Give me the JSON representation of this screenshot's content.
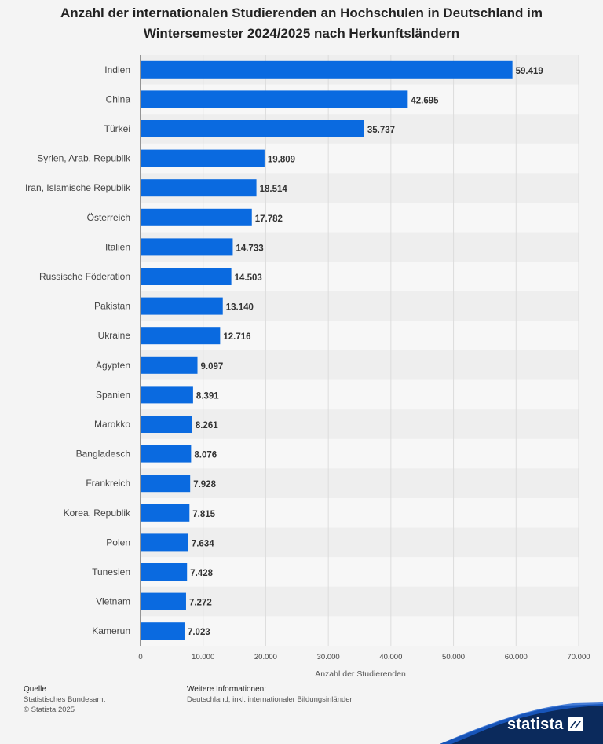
{
  "title": {
    "line1": "Anzahl der internationalen Studierenden an Hochschulen in Deutschland im",
    "line2": "Wintersemester 2024/2025 nach Herkunftsländern"
  },
  "chart_data": {
    "type": "bar",
    "orientation": "horizontal",
    "categories": [
      "Indien",
      "China",
      "Türkei",
      "Syrien, Arab. Republik",
      "Iran, Islamische Republik",
      "Österreich",
      "Italien",
      "Russische Föderation",
      "Pakistan",
      "Ukraine",
      "Ägypten",
      "Spanien",
      "Marokko",
      "Bangladesch",
      "Frankreich",
      "Korea, Republik",
      "Polen",
      "Tunesien",
      "Vietnam",
      "Kamerun"
    ],
    "values": [
      59419,
      42695,
      35737,
      19809,
      18514,
      17782,
      14733,
      14503,
      13140,
      12716,
      9097,
      8391,
      8261,
      8076,
      7928,
      7815,
      7634,
      7428,
      7272,
      7023
    ],
    "value_labels": [
      "59.419",
      "42.695",
      "35.737",
      "19.809",
      "18.514",
      "17.782",
      "14.733",
      "14.503",
      "13.140",
      "12.716",
      "9.097",
      "8.391",
      "8.261",
      "8.076",
      "7.928",
      "7.815",
      "7.634",
      "7.428",
      "7.272",
      "7.023"
    ],
    "xlim": [
      0,
      70000
    ],
    "xticks": [
      0,
      10000,
      20000,
      30000,
      40000,
      50000,
      60000,
      70000
    ],
    "xtick_labels": [
      "0",
      "10.000",
      "20.000",
      "30.000",
      "40.000",
      "50.000",
      "60.000",
      "70.000"
    ],
    "xlabel": "Anzahl der Studierenden",
    "ylabel": "",
    "grid": true,
    "bar_color": "#0a6ae0"
  },
  "footer": {
    "source_heading": "Quelle",
    "source": "Statistisches Bundesamt",
    "copyright": "© Statista 2025",
    "info_heading": "Weitere Informationen:",
    "info": "Deutschland; inkl. internationaler Bildungsinländer"
  },
  "brand": {
    "name": "statista",
    "color": "#0b2a5c"
  }
}
